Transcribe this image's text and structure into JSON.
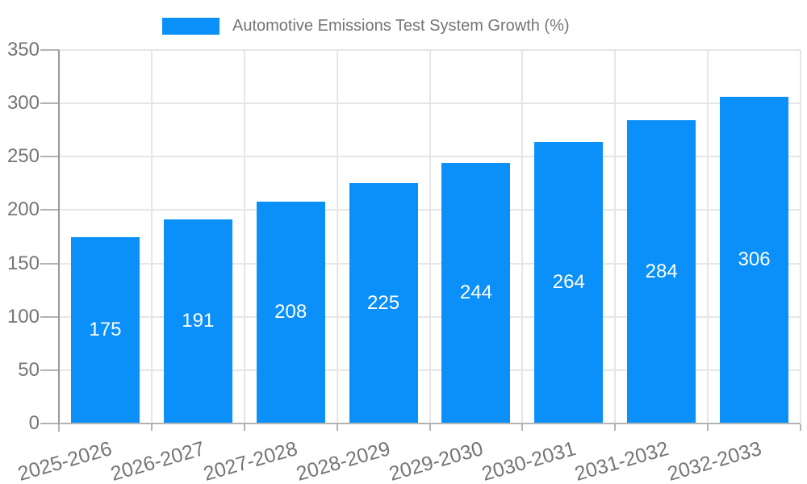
{
  "legend": {
    "label": "Automotive Emissions Test System Growth (%)",
    "position": "top"
  },
  "chart_data": {
    "type": "bar",
    "title": "Automotive Emissions Test System Growth (%)",
    "categories": [
      "2025-2026",
      "2026-2027",
      "2027-2028",
      "2028-2029",
      "2029-2030",
      "2030-2031",
      "2031-2032",
      "2032-2033"
    ],
    "values": [
      175,
      191,
      208,
      225,
      244,
      264,
      284,
      306
    ],
    "series": [
      {
        "name": "Automotive Emissions Test System Growth (%)",
        "values": [
          175,
          191,
          208,
          225,
          244,
          264,
          284,
          306
        ]
      }
    ],
    "xlabel": "",
    "ylabel": "",
    "ylim": [
      0,
      350
    ],
    "yticks": [
      0,
      50,
      100,
      150,
      200,
      250,
      300,
      350
    ],
    "grid": true,
    "legend_position": "top",
    "value_label_position": "inside-center",
    "x_label_rotation_deg": -16,
    "style": {
      "bar_color": "#0a90f8",
      "value_label_color": "#ffffff",
      "text_color": "#757575",
      "grid_color": "#e6e6e6",
      "axis_color": "#999999",
      "x_axis_color": "#b3b3b3",
      "tick_color": "#b3b3b3",
      "background": "#ffffff"
    }
  }
}
